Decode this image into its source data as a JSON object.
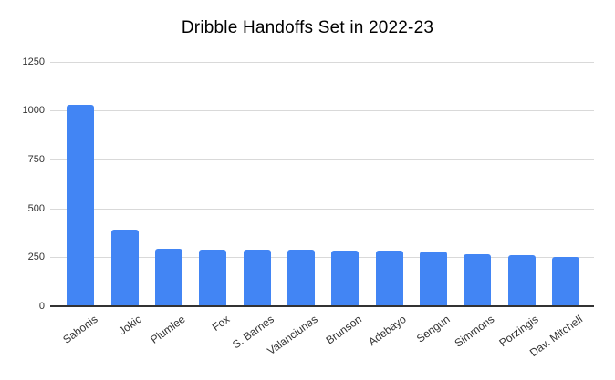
{
  "chart_data": {
    "type": "bar",
    "title": "Dribble Handoffs Set in 2022-23",
    "categories": [
      "Sabonis",
      "Jokic",
      "Plumlee",
      "Fox",
      "S. Barnes",
      "Valanciunas",
      "Brunson",
      "Adebayo",
      "Sengun",
      "Simmons",
      "Porzingis",
      "Dav. Mitchell"
    ],
    "values": [
      1030,
      390,
      295,
      290,
      290,
      290,
      285,
      285,
      280,
      265,
      260,
      250
    ],
    "xlabel": "",
    "ylabel": "",
    "ylim": [
      0,
      1250
    ],
    "yticks": [
      0,
      250,
      500,
      750,
      1000,
      1250
    ],
    "grid": true,
    "legend_position": "none"
  },
  "colors": {
    "background": "#ffffff",
    "bar": "#4285f4",
    "gridline": "#d9d9d9",
    "axis_line": "#333333",
    "title_text": "#000000",
    "tick_text": "#333333"
  }
}
